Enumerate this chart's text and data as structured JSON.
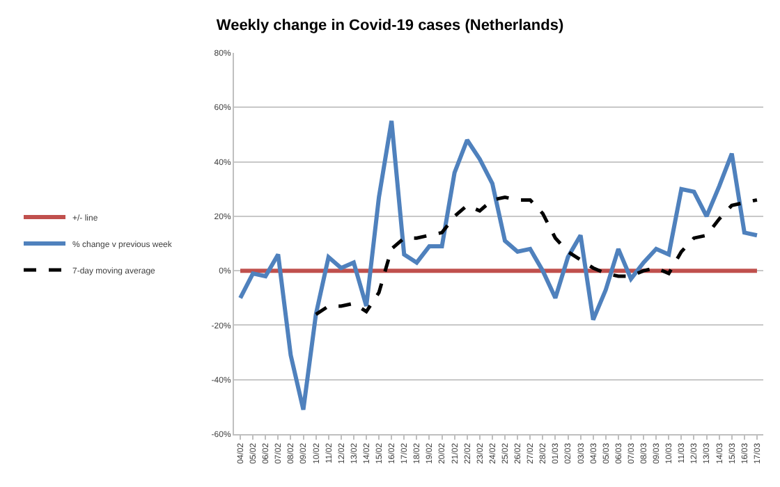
{
  "chart_data": {
    "type": "line",
    "title": "Weekly change in Covid-19 cases (Netherlands)",
    "categories": [
      "04/02",
      "05/02",
      "06/02",
      "07/02",
      "08/02",
      "09/02",
      "10/02",
      "11/02",
      "12/02",
      "13/02",
      "14/02",
      "15/02",
      "16/02",
      "17/02",
      "18/02",
      "19/02",
      "20/02",
      "21/02",
      "22/02",
      "23/02",
      "24/02",
      "25/02",
      "26/02",
      "27/02",
      "28/02",
      "01/03",
      "02/03",
      "03/03",
      "04/03",
      "05/03",
      "06/03",
      "07/03",
      "08/03",
      "09/03",
      "10/03",
      "11/03",
      "12/03",
      "13/03",
      "14/03",
      "15/03",
      "16/03",
      "17/03"
    ],
    "series": [
      {
        "name": "+/- line",
        "color": "#c0504d",
        "line_style": "solid",
        "values": [
          0,
          0,
          0,
          0,
          0,
          0,
          0,
          0,
          0,
          0,
          0,
          0,
          0,
          0,
          0,
          0,
          0,
          0,
          0,
          0,
          0,
          0,
          0,
          0,
          0,
          0,
          0,
          0,
          0,
          0,
          0,
          0,
          0,
          0,
          0,
          0,
          0,
          0,
          0,
          0,
          0,
          0
        ]
      },
      {
        "name": "% change v previous week",
        "color": "#4f81bd",
        "line_style": "solid",
        "values": [
          -10,
          -1,
          -2,
          6,
          -31,
          -51,
          -16,
          5,
          1,
          3,
          -13,
          27,
          55,
          6,
          3,
          9,
          9,
          36,
          48,
          41,
          32,
          11,
          7,
          8,
          0,
          -10,
          5,
          13,
          -18,
          -7,
          8,
          -3,
          3,
          8,
          6,
          30,
          29,
          20,
          31,
          43,
          14,
          13
        ]
      },
      {
        "name": "7-day moving average",
        "color": "#000000",
        "line_style": "dashed",
        "values": [
          null,
          null,
          null,
          null,
          null,
          null,
          -16,
          -13,
          -13,
          -12,
          -15,
          -8,
          8,
          12,
          12,
          13,
          14,
          20,
          24,
          22,
          26,
          27,
          26,
          26,
          21,
          12,
          7,
          4,
          1,
          -1,
          -2,
          -2,
          0,
          1,
          -1,
          7,
          12,
          13,
          19,
          24,
          25,
          26
        ]
      }
    ],
    "ylim": [
      -60,
      80
    ],
    "yticks": [
      {
        "value": -60,
        "label": "-60%"
      },
      {
        "value": -40,
        "label": "-40%"
      },
      {
        "value": -20,
        "label": "-20%"
      },
      {
        "value": 0,
        "label": "0%"
      },
      {
        "value": 20,
        "label": "20%"
      },
      {
        "value": 40,
        "label": "40%"
      },
      {
        "value": 60,
        "label": "60%"
      },
      {
        "value": 80,
        "label": "80%"
      }
    ],
    "grid": "y",
    "legend": "left",
    "marker": "none"
  }
}
